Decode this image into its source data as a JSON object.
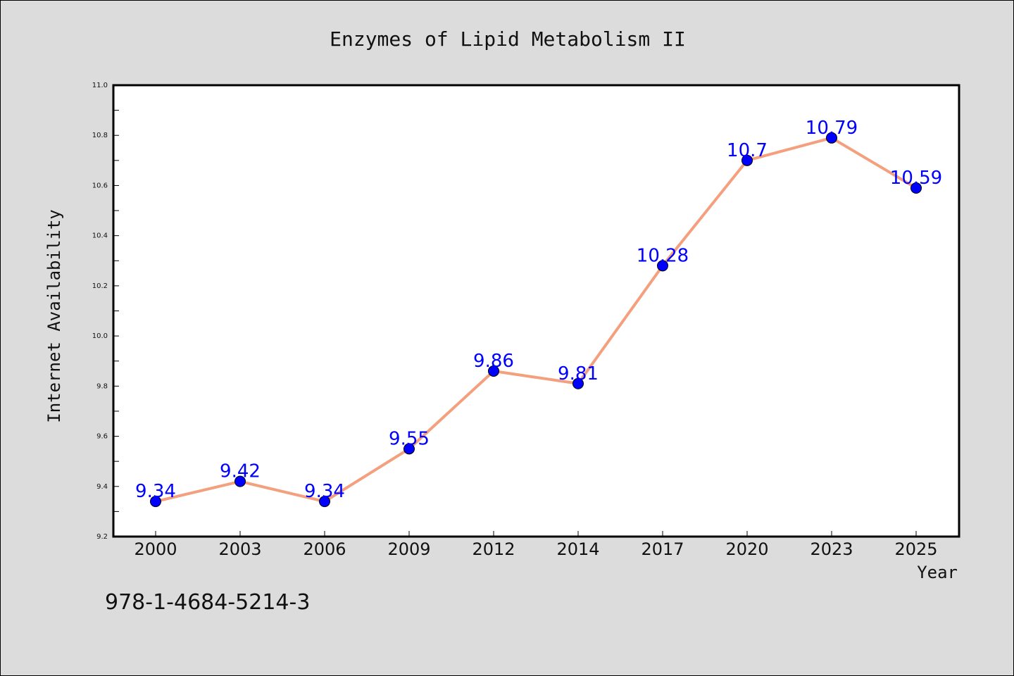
{
  "chart_data": {
    "type": "line",
    "title": "Enzymes of Lipid Metabolism II",
    "xlabel": "Year",
    "ylabel": "Internet Availability",
    "categories": [
      "2000",
      "2003",
      "2006",
      "2009",
      "2012",
      "2014",
      "2017",
      "2020",
      "2023",
      "2025"
    ],
    "series": [
      {
        "values": [
          9.34,
          9.42,
          9.34,
          9.55,
          9.86,
          9.81,
          10.28,
          10.7,
          10.79,
          10.59
        ],
        "labels": [
          "9.34",
          "9.42",
          "9.34",
          "9.55",
          "9.86",
          "9.81",
          "10.28",
          "10.7",
          "10.79",
          "10.59"
        ],
        "line_color": "#f4a07e",
        "marker_color": "#0000ff",
        "label_color": "#0000ff"
      }
    ],
    "ylim": [
      9.2,
      11.0
    ],
    "yticks": [
      "9.2",
      "9.4",
      "9.6",
      "9.8",
      "10.0",
      "10.2",
      "10.4",
      "10.6",
      "10.8",
      "11.0"
    ],
    "grid": false,
    "legend": "none"
  },
  "footer": {
    "isbn": "978-1-4684-5214-3"
  },
  "colors": {
    "background": "#dcdcdc",
    "plot_background": "#ffffff"
  }
}
